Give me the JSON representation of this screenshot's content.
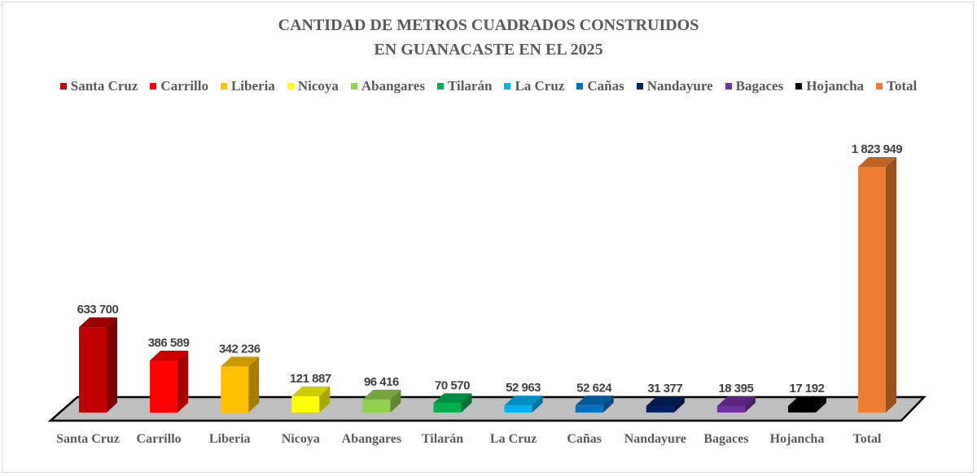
{
  "chart_data": {
    "type": "bar",
    "title": "CANTIDAD DE METROS CUADRADOS CONSTRUIDOS",
    "subtitle": "EN GUANACASTE EN EL 2025",
    "xlabel": "",
    "ylabel": "",
    "ylim": [
      0,
      1823949
    ],
    "grid": false,
    "legend_position": "top",
    "categories": [
      "Santa Cruz",
      "Carrillo",
      "Liberia",
      "Nicoya",
      "Abangares",
      "Tilarán",
      "La Cruz",
      "Cañas",
      "Nandayure",
      "Bagaces",
      "Hojancha",
      "Total"
    ],
    "values": [
      633700,
      386589,
      342236,
      121887,
      96416,
      70570,
      52963,
      52624,
      31377,
      18395,
      17192,
      1823949
    ],
    "value_labels": [
      "633 700",
      "386 589",
      "342 236",
      "121 887",
      "96 416",
      "70 570",
      "52 963",
      "52 624",
      "31 377",
      "18 395",
      "17 192",
      "1 823 949"
    ],
    "colors": [
      "#c00000",
      "#ff0000",
      "#ffc000",
      "#ffff00",
      "#92d050",
      "#00b050",
      "#00b0f0",
      "#0070c0",
      "#002060",
      "#7030a0",
      "#000000",
      "#ed7d31"
    ]
  }
}
